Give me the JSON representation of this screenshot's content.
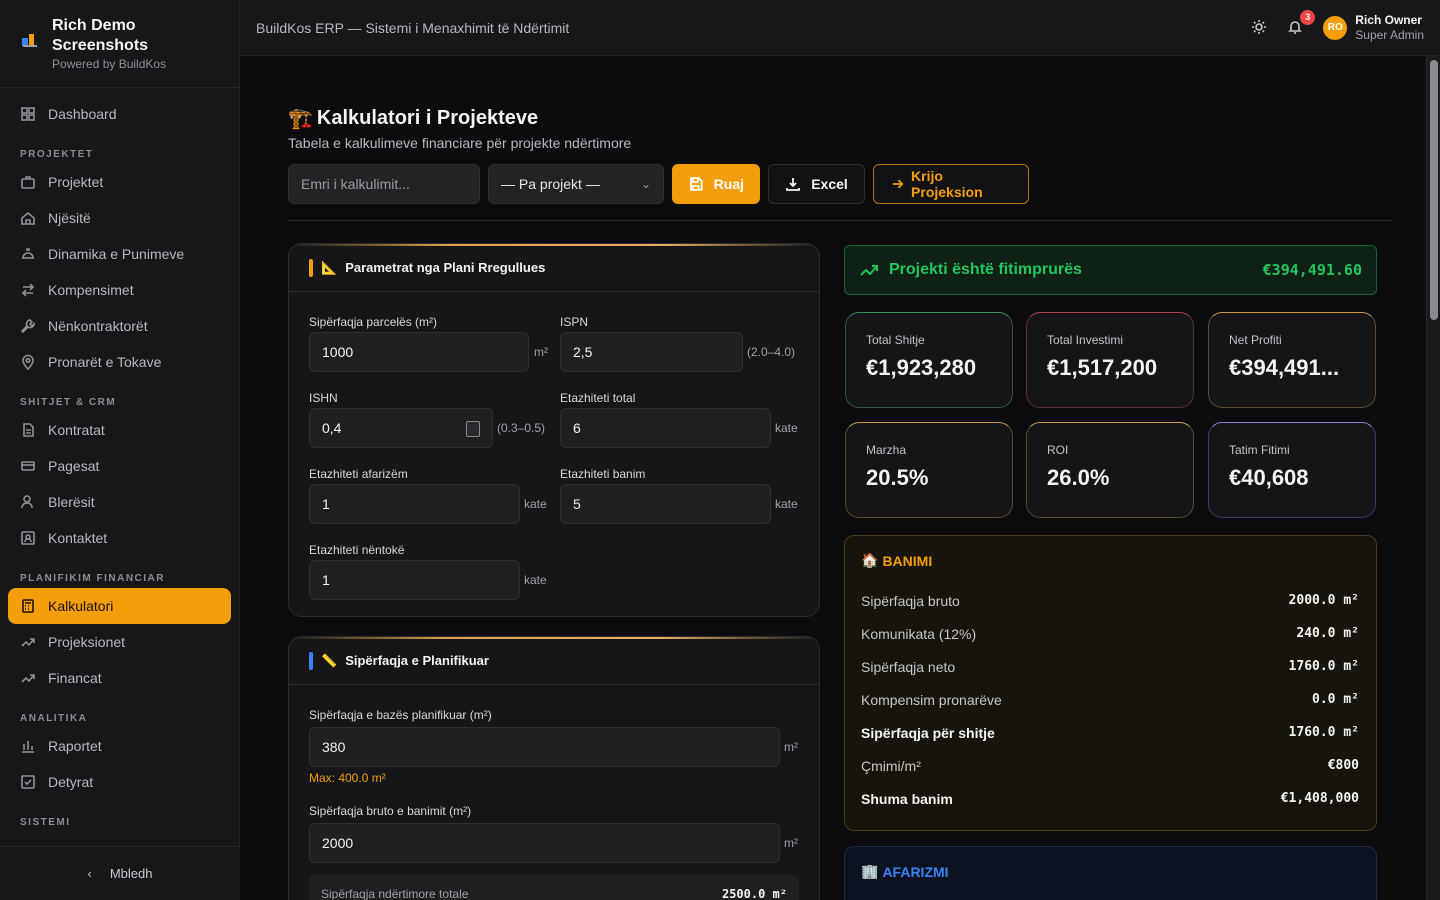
{
  "brand": {
    "name": "Rich Demo Screenshots",
    "subtitle": "Powered by BuildKos"
  },
  "header": {
    "title": "BuildKos ERP — Sistemi i Menaxhimit të Ndërtimit",
    "notifications": "3"
  },
  "user": {
    "initials": "RO",
    "name": "Rich Owner",
    "role": "Super Admin"
  },
  "sidebar": {
    "dashboard": "Dashboard",
    "sections": {
      "projektet": "PROJEKTET",
      "shitjet": "SHITJET & CRM",
      "planifikim": "PLANIFIKIM FINANCIAR",
      "analitika": "ANALITIKA",
      "sistemi": "SISTEMI"
    },
    "projektet_items": [
      "Projektet",
      "Njësitë",
      "Dinamika e Punimeve",
      "Kompensimet",
      "Nënkontraktorët",
      "Pronarët e Tokave"
    ],
    "shitjet_items": [
      "Kontratat",
      "Pagesat",
      "Blerësit",
      "Kontaktet"
    ],
    "planifikim_items": [
      "Kalkulatori",
      "Projeksionet",
      "Financat"
    ],
    "analitika_items": [
      "Raportet",
      "Detyrat"
    ],
    "collapse": "Mbledh"
  },
  "page": {
    "title": "Kalkulatori i Projekteve",
    "subtitle": "Tabela e kalkulimeve financiare për projekte ndërtimore"
  },
  "toolbar": {
    "name_placeholder": "Emri i kalkulimit...",
    "project_select": "— Pa projekt —",
    "save": "Ruaj",
    "excel": "Excel",
    "create_projection": "Krijo Projeksion"
  },
  "params_panel": {
    "title": "Parametrat nga Plani Rregullues",
    "parcel_area": {
      "label": "Sipërfaqja parcelës (m²)",
      "value": "1000",
      "unit": "m²"
    },
    "ispn": {
      "label": "ISPN",
      "value": "2,5",
      "range": "(2.0–4.0)"
    },
    "ishn": {
      "label": "ISHN",
      "value": "0,4",
      "range": "(0.3–0.5)"
    },
    "floors_total": {
      "label": "Etazhiteti total",
      "value": "6",
      "unit": "kate"
    },
    "floors_business": {
      "label": "Etazhiteti afarizëm",
      "value": "1",
      "unit": "kate"
    },
    "floors_residential": {
      "label": "Etazhiteti banim",
      "value": "5",
      "unit": "kate"
    },
    "floors_underground": {
      "label": "Etazhiteti nëntokë",
      "value": "1",
      "unit": "kate"
    }
  },
  "planned_panel": {
    "title": "Sipërfaqja e Planifikuar",
    "base_area": {
      "label": "Sipërfaqja e bazës planifikuar (m²)",
      "value": "380",
      "unit": "m²",
      "max": "Max: 400.0 m²"
    },
    "gross_res": {
      "label": "Sipërfaqja bruto e banimit (m²)",
      "value": "2000",
      "unit": "m²"
    },
    "total_label": "Sipërfaqja ndërtimore totale",
    "total_value": "2500.0 m²"
  },
  "profit": {
    "label": "Projekti është fitimprurës",
    "value": "€394,491.60"
  },
  "kpis": [
    {
      "label": "Total Shitje",
      "value": "€1,923,280"
    },
    {
      "label": "Total Investimi",
      "value": "€1,517,200"
    },
    {
      "label": "Net Profiti",
      "value": "€394,491..."
    },
    {
      "label": "Marzha",
      "value": "20.5%"
    },
    {
      "label": "ROI",
      "value": "26.0%"
    },
    {
      "label": "Tatim Fitimi",
      "value": "€40,608"
    }
  ],
  "banimi": {
    "title": "BANIMI",
    "rows": [
      {
        "k": "Sipërfaqja bruto",
        "v": "2000.0 m²"
      },
      {
        "k": "Komunikata (12%)",
        "v": "240.0 m²"
      },
      {
        "k": "Sipërfaqja neto",
        "v": "1760.0 m²"
      },
      {
        "k": "Kompensim pronarëve",
        "v": "0.0 m²"
      },
      {
        "k": "Sipërfaqja për shitje",
        "v": "1760.0 m²"
      },
      {
        "k": "Çmimi/m²",
        "v": "€800"
      },
      {
        "k": "Shuma banim",
        "v": "€1,408,000"
      }
    ]
  },
  "afarizmi": {
    "title": "AFARIZMI"
  },
  "colors": {
    "accent": "#f59e0b",
    "success": "#22c55e",
    "info": "#3b82f6"
  }
}
